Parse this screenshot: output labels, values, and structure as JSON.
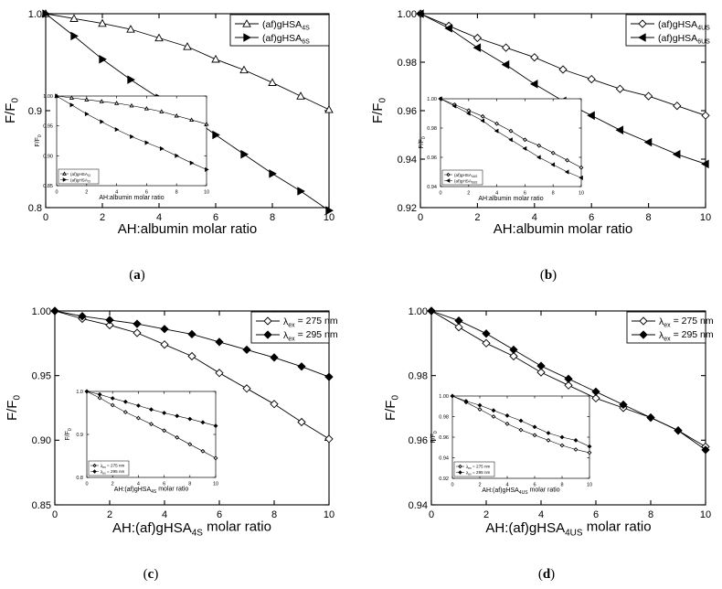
{
  "chart_data": [
    {
      "type": "line",
      "panel_label": "a",
      "xlabel": "AH:albumin molar ratio",
      "ylabel": "F/F0",
      "xlim": [
        0,
        10
      ],
      "ylim": [
        0.8,
        1.0
      ],
      "xticks": [
        0,
        2,
        4,
        6,
        8,
        10
      ],
      "yticks": [
        0.8,
        0.9,
        1.0
      ],
      "legend_position": "top-right",
      "series": [
        {
          "name": "(af)gHSA4S",
          "label_main": "(af)gHSA",
          "label_sub": "4S",
          "marker": "open-triangle-up",
          "x": [
            0,
            1,
            2,
            3,
            4,
            5,
            6,
            7,
            8,
            9,
            10
          ],
          "y": [
            1.0,
            0.995,
            0.99,
            0.984,
            0.975,
            0.966,
            0.953,
            0.942,
            0.929,
            0.915,
            0.901
          ]
        },
        {
          "name": "(af)gHSA6S",
          "label_main": "(af)gHSA",
          "label_sub": "6S",
          "marker": "filled-triangle-right",
          "x": [
            0,
            1,
            2,
            3,
            4,
            5,
            6,
            7,
            8,
            9,
            10
          ],
          "y": [
            1.0,
            0.977,
            0.953,
            0.932,
            0.913,
            0.896,
            0.875,
            0.855,
            0.835,
            0.817,
            0.797
          ]
        }
      ],
      "inset": {
        "xlabel": "AH:albumin molar ratio",
        "ylabel": "F/F0",
        "xlim": [
          0,
          10
        ],
        "ylim": [
          0.85,
          1.0
        ],
        "xticks": [
          0,
          2,
          4,
          6,
          8,
          10
        ],
        "yticks": [
          0.85,
          0.9,
          0.95,
          1.0
        ],
        "series": [
          {
            "name": "(af)gHSA",
            "label_main": "(af)gHSA",
            "label_sub": "CI",
            "marker": "open-triangle-up",
            "x": [
              0,
              1,
              2,
              3,
              4,
              5,
              6,
              7,
              8,
              9,
              10
            ],
            "y": [
              1.0,
              0.997,
              0.994,
              0.991,
              0.988,
              0.984,
              0.979,
              0.974,
              0.967,
              0.96,
              0.953
            ]
          },
          {
            "name": "(af)gHSA",
            "label_main": "(af)gHSA",
            "label_sub": "CI",
            "marker": "filled-triangle-right",
            "x": [
              0,
              1,
              2,
              3,
              4,
              5,
              6,
              7,
              8,
              9,
              10
            ],
            "y": [
              1.0,
              0.985,
              0.97,
              0.957,
              0.944,
              0.932,
              0.922,
              0.912,
              0.9,
              0.888,
              0.877
            ]
          }
        ]
      }
    },
    {
      "type": "line",
      "panel_label": "b",
      "xlabel": "AH:albumin molar ratio",
      "ylabel": "F/F0",
      "xlim": [
        0,
        10
      ],
      "ylim": [
        0.92,
        1.0
      ],
      "xticks": [
        0,
        2,
        4,
        6,
        8,
        10
      ],
      "yticks": [
        0.92,
        0.94,
        0.96,
        0.98,
        1.0
      ],
      "legend_position": "top-right",
      "series": [
        {
          "name": "(af)gHSA4US",
          "label_main": "(af)gHSA",
          "label_sub": "4US",
          "marker": "open-diamond",
          "x": [
            0,
            1,
            2,
            3,
            4,
            5,
            6,
            7,
            8,
            9,
            10
          ],
          "y": [
            1.0,
            0.995,
            0.99,
            0.986,
            0.982,
            0.977,
            0.973,
            0.969,
            0.966,
            0.962,
            0.958
          ]
        },
        {
          "name": "(af)gHSA6US",
          "label_main": "(af)gHSA",
          "label_sub": "6US",
          "marker": "filled-triangle-left",
          "x": [
            0,
            1,
            2,
            3,
            4,
            5,
            6,
            7,
            8,
            9,
            10
          ],
          "y": [
            1.0,
            0.994,
            0.986,
            0.979,
            0.971,
            0.964,
            0.958,
            0.952,
            0.947,
            0.942,
            0.938
          ]
        }
      ],
      "inset": {
        "xlabel": "AH:albumin molar ratio",
        "ylabel": "F/F0",
        "xlim": [
          0,
          10
        ],
        "ylim": [
          0.94,
          1.0
        ],
        "xticks": [
          0,
          2,
          4,
          6,
          8,
          10
        ],
        "yticks": [
          0.94,
          0.96,
          0.98,
          1.0
        ],
        "series": [
          {
            "name": "(af)gHSA",
            "label_main": "(af)gHSA",
            "label_sub": "4US",
            "marker": "open-diamond",
            "x": [
              0,
              1,
              2,
              3,
              4,
              5,
              6,
              7,
              8,
              9,
              10
            ],
            "y": [
              1.0,
              0.996,
              0.992,
              0.988,
              0.983,
              0.978,
              0.972,
              0.968,
              0.963,
              0.958,
              0.953
            ]
          },
          {
            "name": "(af)gHSA",
            "label_main": "(af)gHSA",
            "label_sub": "6US",
            "marker": "filled-triangle-left",
            "x": [
              0,
              1,
              2,
              3,
              4,
              5,
              6,
              7,
              8,
              9,
              10
            ],
            "y": [
              1.0,
              0.995,
              0.99,
              0.985,
              0.978,
              0.972,
              0.966,
              0.96,
              0.955,
              0.95,
              0.946
            ]
          }
        ]
      }
    },
    {
      "type": "line",
      "panel_label": "c",
      "xlabel": "AH:(af)gHSA4S molar ratio",
      "xlabel_main": "AH:(af)gHSA",
      "xlabel_sub": "4S",
      "xlabel_tail": " molar ratio",
      "ylabel": "F/F0",
      "xlim": [
        0,
        10
      ],
      "ylim": [
        0.85,
        1.0
      ],
      "xticks": [
        0,
        2,
        4,
        6,
        8,
        10
      ],
      "yticks": [
        0.85,
        0.9,
        0.95,
        1.0
      ],
      "legend_position": "top-right",
      "series": [
        {
          "name": "λex = 275 nm",
          "label_main": "λ",
          "label_sub": "ex",
          "label_tail": " = 275 nm",
          "marker": "open-diamond",
          "x": [
            0,
            1,
            2,
            3,
            4,
            5,
            6,
            7,
            8,
            9,
            10
          ],
          "y": [
            1.0,
            0.994,
            0.989,
            0.983,
            0.974,
            0.965,
            0.952,
            0.94,
            0.928,
            0.914,
            0.901
          ]
        },
        {
          "name": "λex = 295 nm",
          "label_main": "λ",
          "label_sub": "ex",
          "label_tail": " = 295 nm",
          "marker": "filled-diamond",
          "x": [
            0,
            1,
            2,
            3,
            4,
            5,
            6,
            7,
            8,
            9,
            10
          ],
          "y": [
            1.0,
            0.996,
            0.993,
            0.99,
            0.986,
            0.982,
            0.976,
            0.97,
            0.964,
            0.957,
            0.949
          ]
        }
      ],
      "inset": {
        "xlabel": "AH:(af)gHSA4S molar ratio",
        "xlabel_main": "AH:(af)gHSA",
        "xlabel_sub": "4S",
        "xlabel_tail": " molar ratio",
        "ylabel": "F/F0",
        "xlim": [
          0,
          10
        ],
        "ylim": [
          0.8,
          1.0
        ],
        "xticks": [
          0,
          2,
          4,
          6,
          8,
          10
        ],
        "yticks": [
          0.8,
          0.9,
          1.0
        ],
        "series": [
          {
            "name": "λex = 275 nm",
            "label_main": "λ",
            "label_sub": "ex",
            "label_tail": " = 275 nm",
            "marker": "open-diamond",
            "x": [
              0,
              1,
              2,
              3,
              4,
              5,
              6,
              7,
              8,
              9,
              10
            ],
            "y": [
              1.0,
              0.985,
              0.968,
              0.952,
              0.938,
              0.924,
              0.909,
              0.893,
              0.877,
              0.861,
              0.845
            ]
          },
          {
            "name": "λex = 295 nm",
            "label_main": "λ",
            "label_sub": "ex",
            "label_tail": " = 295 nm",
            "marker": "filled-diamond",
            "x": [
              0,
              1,
              2,
              3,
              4,
              5,
              6,
              7,
              8,
              9,
              10
            ],
            "y": [
              1.0,
              0.993,
              0.984,
              0.976,
              0.967,
              0.958,
              0.95,
              0.943,
              0.936,
              0.928,
              0.92
            ]
          }
        ]
      }
    },
    {
      "type": "line",
      "panel_label": "d",
      "xlabel": "AH:(af)gHSA4US molar ratio",
      "xlabel_main": "AH:(af)gHSA",
      "xlabel_sub": "4US",
      "xlabel_tail": " molar ratio",
      "ylabel": "F/F0",
      "xlim": [
        0,
        10
      ],
      "ylim": [
        0.94,
        1.0
      ],
      "xticks": [
        0,
        2,
        4,
        6,
        8,
        10
      ],
      "yticks": [
        0.94,
        0.96,
        0.98,
        1.0
      ],
      "legend_position": "top-right",
      "series": [
        {
          "name": "λex = 275 nm",
          "label_main": "λ",
          "label_sub": "ex",
          "label_tail": " = 275 nm",
          "marker": "open-diamond",
          "x": [
            0,
            1,
            2,
            3,
            4,
            5,
            6,
            7,
            8,
            9,
            10
          ],
          "y": [
            1.0,
            0.995,
            0.99,
            0.986,
            0.981,
            0.977,
            0.973,
            0.97,
            0.967,
            0.963,
            0.958
          ]
        },
        {
          "name": "λex = 295 nm",
          "label_main": "λ",
          "label_sub": "ex",
          "label_tail": " = 295 nm",
          "marker": "filled-diamond",
          "x": [
            0,
            1,
            2,
            3,
            4,
            5,
            6,
            7,
            8,
            9,
            10
          ],
          "y": [
            1.0,
            0.997,
            0.993,
            0.988,
            0.983,
            0.979,
            0.975,
            0.971,
            0.967,
            0.963,
            0.957
          ]
        }
      ],
      "inset": {
        "xlabel": "AH:(af)gHSA4US molar ratio",
        "xlabel_main": "AH:(af)gHSA",
        "xlabel_sub": "4US",
        "xlabel_tail": " molar ratio",
        "ylabel": "F/F0",
        "xlim": [
          0,
          10
        ],
        "ylim": [
          0.92,
          1.0
        ],
        "xticks": [
          0,
          2,
          4,
          6,
          8,
          10
        ],
        "yticks": [
          0.92,
          0.94,
          0.96,
          0.98,
          1.0
        ],
        "series": [
          {
            "name": "λex = 275 nm",
            "label_main": "λ",
            "label_sub": "ex",
            "label_tail": " = 275 nm",
            "marker": "open-diamond",
            "x": [
              0,
              1,
              2,
              3,
              4,
              5,
              6,
              7,
              8,
              9,
              10
            ],
            "y": [
              1.0,
              0.994,
              0.987,
              0.98,
              0.973,
              0.967,
              0.962,
              0.957,
              0.952,
              0.948,
              0.945
            ]
          },
          {
            "name": "λex = 295 nm",
            "label_main": "λ",
            "label_sub": "ex",
            "label_tail": " = 295 nm",
            "marker": "filled-diamond",
            "x": [
              0,
              1,
              2,
              3,
              4,
              5,
              6,
              7,
              8,
              9,
              10
            ],
            "y": [
              1.0,
              0.995,
              0.991,
              0.986,
              0.981,
              0.976,
              0.97,
              0.964,
              0.96,
              0.957,
              0.951
            ]
          }
        ]
      }
    }
  ]
}
